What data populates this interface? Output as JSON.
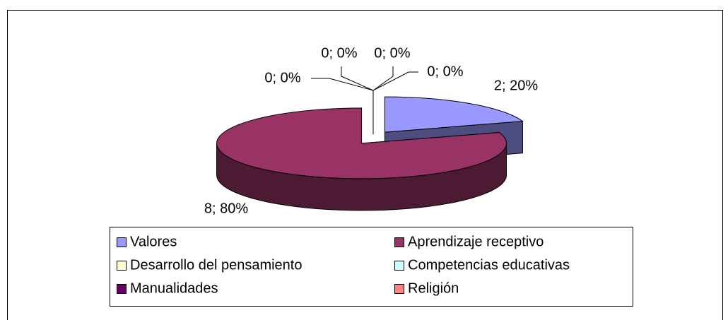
{
  "chart_data": {
    "type": "pie",
    "categories": [
      "Valores",
      "Aprendizaje receptivo",
      "Desarrollo del pensamiento",
      "Competencias educativas",
      "Manualidades",
      "Religión"
    ],
    "values": [
      2,
      8,
      0,
      0,
      0,
      0
    ],
    "value_labels": [
      "2; 20%",
      "8; 80%",
      "0; 0%",
      "0; 0%",
      "0; 0%",
      "0; 0%"
    ],
    "colors": [
      "#9999ff",
      "#993366",
      "#ffffcc",
      "#ccffff",
      "#660066",
      "#ff8080"
    ],
    "legend": "bottom"
  }
}
